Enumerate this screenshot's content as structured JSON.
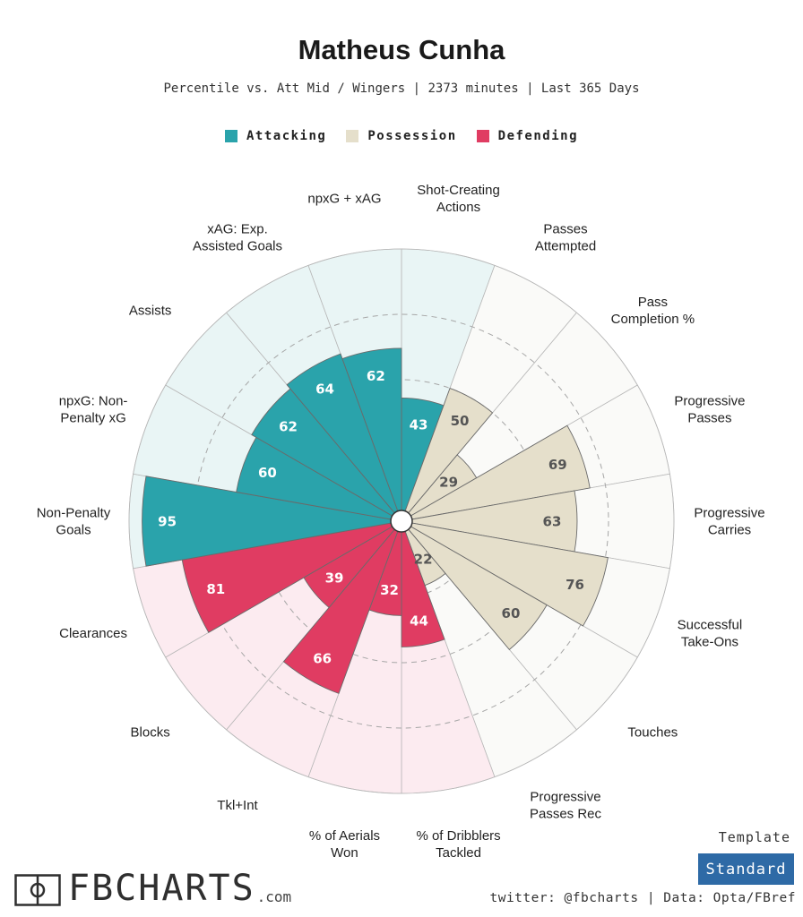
{
  "header": {
    "title": "Matheus Cunha",
    "subtitle": "Percentile vs. Att Mid / Wingers | 2373 minutes | Last 365 Days"
  },
  "legend": [
    {
      "label": "Attacking",
      "color": "#2aa3ab"
    },
    {
      "label": "Possession",
      "color": "#e5dfcb"
    },
    {
      "label": "Defending",
      "color": "#e03c62"
    }
  ],
  "chart_data": {
    "type": "radar",
    "title": "Matheus Cunha",
    "scale": [
      0,
      100
    ],
    "categories": [
      {
        "label": "Shot-Creating\nActions",
        "value": 43,
        "group": "Attacking"
      },
      {
        "label": "Passes\nAttempted",
        "value": 50,
        "group": "Possession"
      },
      {
        "label": "Pass\nCompletion %",
        "value": 29,
        "group": "Possession"
      },
      {
        "label": "Progressive\nPasses",
        "value": 69,
        "group": "Possession"
      },
      {
        "label": "Progressive\nCarries",
        "value": 63,
        "group": "Possession"
      },
      {
        "label": "Successful\nTake-Ons",
        "value": 76,
        "group": "Possession"
      },
      {
        "label": "Touches",
        "value": 60,
        "group": "Possession"
      },
      {
        "label": "Progressive\nPasses Rec",
        "value": 22,
        "group": "Possession"
      },
      {
        "label": "% of Dribblers\nTackled",
        "value": 44,
        "group": "Defending"
      },
      {
        "label": "% of Aerials\nWon",
        "value": 32,
        "group": "Defending"
      },
      {
        "label": "Tkl+Int",
        "value": 66,
        "group": "Defending"
      },
      {
        "label": "Blocks",
        "value": 39,
        "group": "Defending"
      },
      {
        "label": "Clearances",
        "value": 81,
        "group": "Defending"
      },
      {
        "label": "Non-Penalty\nGoals",
        "value": 95,
        "group": "Attacking"
      },
      {
        "label": "npxG: Non-\nPenalty xG",
        "value": 60,
        "group": "Attacking"
      },
      {
        "label": "Assists",
        "value": 62,
        "group": "Attacking"
      },
      {
        "label": "xAG: Exp.\nAssisted Goals",
        "value": 64,
        "group": "Attacking"
      },
      {
        "label": "npxG + xAG",
        "value": 62,
        "group": "Attacking"
      }
    ],
    "colors": {
      "Attacking": {
        "fill": "#2aa3ab",
        "bg": "#e9f5f5"
      },
      "Possession": {
        "fill": "#e5dfcb",
        "bg": "#fafaf8"
      },
      "Defending": {
        "fill": "#e03c62",
        "bg": "#fcebf0"
      }
    }
  },
  "footer": {
    "logo_text": "FBCHARTS",
    "logo_domain": ".com",
    "template_label": "Template",
    "template_value": "Standard",
    "credits": "twitter: @fbcharts | Data: Opta/FBref"
  }
}
